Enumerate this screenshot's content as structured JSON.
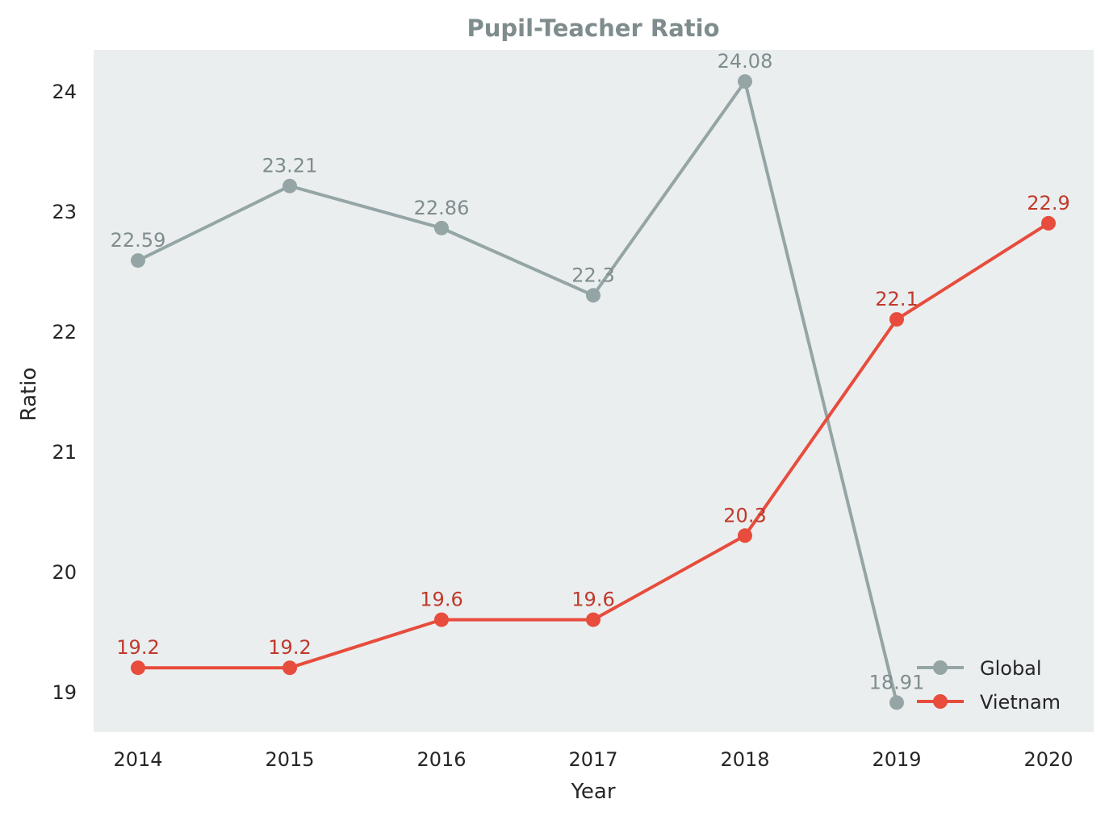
{
  "chart_data": {
    "type": "line",
    "title": "Pupil-Teacher Ratio",
    "xlabel": "Year",
    "ylabel": "Ratio",
    "categories": [
      "2014",
      "2015",
      "2016",
      "2017",
      "2018",
      "2019",
      "2020"
    ],
    "ylim": [
      18.66,
      24.34
    ],
    "yticks": [
      19,
      20,
      21,
      22,
      23,
      24
    ],
    "grid": false,
    "legend_position": "lower right",
    "series": [
      {
        "name": "Global",
        "color": "#95a5a6",
        "label_color": "#7f8c8d",
        "values": [
          22.59,
          23.21,
          22.86,
          22.3,
          24.08,
          18.91,
          null
        ],
        "labels": [
          "22.59",
          "23.21",
          "22.86",
          "22.3",
          "24.08",
          "18.91",
          null
        ]
      },
      {
        "name": "Vietnam",
        "color": "#e74c3c",
        "label_color": "#c0392b",
        "values": [
          19.2,
          19.2,
          19.6,
          19.6,
          20.3,
          22.1,
          22.9
        ],
        "labels": [
          "19.2",
          "19.2",
          "19.6",
          "19.6",
          "20.3",
          "22.1",
          "22.9"
        ]
      }
    ],
    "colors": {
      "plot_background": "#eaeeef",
      "title": "#7f8c8d"
    }
  }
}
